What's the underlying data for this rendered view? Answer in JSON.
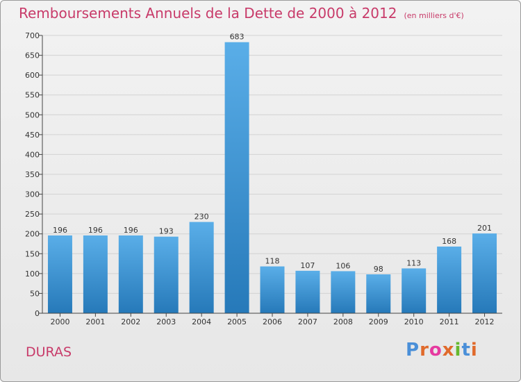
{
  "header": {
    "title": "Remboursements Annuels de la Dette de 2000 à 2012",
    "subtitle": "(en milliers d'€)"
  },
  "footer": {
    "commune": "DURAS",
    "logo_text": "Proxiti"
  },
  "colors": {
    "title": "#c83a69",
    "bar_top": "#5aaee8",
    "bar_bottom": "#2679b9",
    "logo": [
      "#4a8fd8",
      "#e06a2b",
      "#e63aa0",
      "#e06a2b",
      "#66b82e",
      "#4a8fd8",
      "#e06a2b"
    ]
  },
  "chart_data": {
    "type": "bar",
    "categories": [
      "2000",
      "2001",
      "2002",
      "2003",
      "2004",
      "2005",
      "2006",
      "2007",
      "2008",
      "2009",
      "2010",
      "2011",
      "2012"
    ],
    "values": [
      196,
      196,
      196,
      193,
      230,
      683,
      118,
      107,
      106,
      98,
      113,
      168,
      201
    ],
    "ylim": [
      0,
      700
    ],
    "yticks": [
      0,
      50,
      100,
      150,
      200,
      250,
      300,
      350,
      400,
      450,
      500,
      550,
      600,
      650,
      700
    ],
    "grid": true,
    "data_labels": true
  }
}
